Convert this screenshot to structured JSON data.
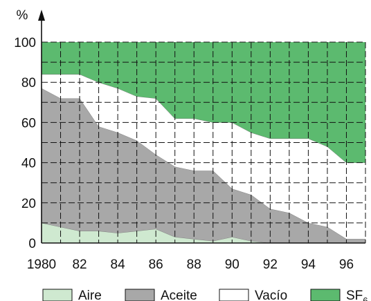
{
  "chart_data": {
    "type": "area",
    "stacked": true,
    "ylabel": "%",
    "xlabel": "",
    "title": "",
    "ylim": [
      0,
      100
    ],
    "xlim": [
      1980,
      1997
    ],
    "grid": true,
    "legend_position": "bottom",
    "x_ticks": [
      "1980",
      "82",
      "84",
      "86",
      "88",
      "90",
      "92",
      "94",
      "96"
    ],
    "y_ticks": [
      "0",
      "20",
      "40",
      "60",
      "80",
      "100"
    ],
    "x": [
      1980,
      1981,
      1982,
      1983,
      1984,
      1985,
      1986,
      1987,
      1988,
      1989,
      1990,
      1991,
      1992,
      1993,
      1994,
      1995,
      1996,
      1997
    ],
    "series": [
      {
        "name": "Aire",
        "sub": "",
        "color": "#cfe9d0",
        "values": [
          10,
          8,
          6,
          6,
          5,
          6,
          7,
          3,
          2,
          1,
          3,
          1,
          0,
          0,
          0,
          0,
          0,
          0
        ]
      },
      {
        "name": "Aceite",
        "sub": "",
        "color": "#a8a8a8",
        "values": [
          67,
          64,
          66,
          52,
          50,
          45,
          37,
          35,
          34,
          35,
          24,
          23,
          17,
          15,
          10,
          8,
          2,
          2
        ]
      },
      {
        "name": "Vacío",
        "sub": "",
        "color": "#ffffff",
        "values": [
          7,
          12,
          12,
          22,
          22,
          22,
          28,
          24,
          26,
          24,
          33,
          31,
          35,
          37,
          42,
          40,
          38,
          38
        ]
      },
      {
        "name": "SF",
        "sub": "6",
        "color": "#5cba6f",
        "values": [
          16,
          16,
          16,
          20,
          23,
          27,
          28,
          38,
          38,
          40,
          40,
          45,
          48,
          48,
          48,
          52,
          60,
          60
        ]
      }
    ]
  }
}
